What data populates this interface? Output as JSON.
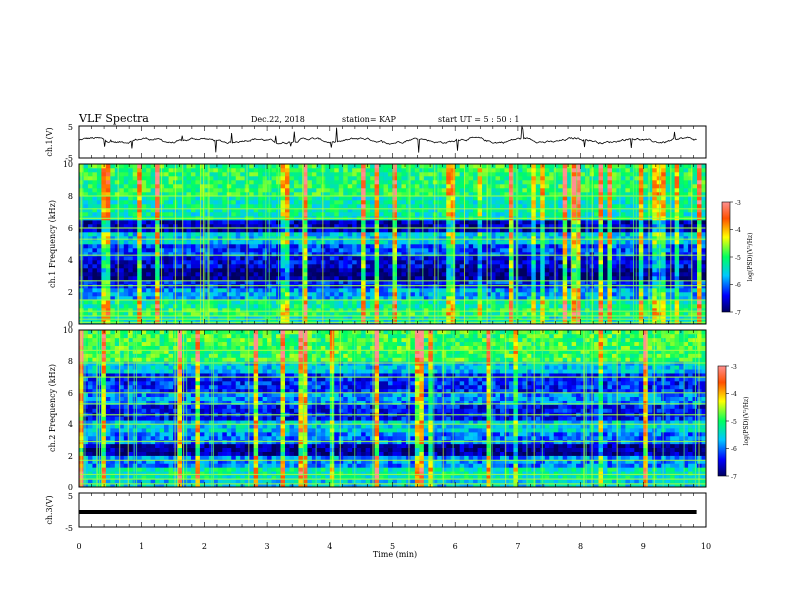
{
  "header": {
    "title": "VLF Spectra",
    "date": "Dec.22, 2018",
    "station": "station= KAP",
    "start": "start  UT =  5 : 50 : 1"
  },
  "chart_data": [
    {
      "type": "line",
      "ylabel": "ch.1(V)",
      "ylim": [
        -5,
        5
      ],
      "yticks": [
        "5",
        "-5"
      ],
      "xlim": [
        0,
        10
      ],
      "description_values": {
        "x_range_min": [
          0,
          9.85
        ],
        "baseline_v": 0.5,
        "amplitude_v": 1.5
      }
    },
    {
      "type": "heatmap",
      "ylabel": "ch.1 Frequency (kHz)",
      "ylim": [
        0,
        10
      ],
      "yticks": [
        "0",
        "2",
        "4",
        "6",
        "8",
        "10"
      ],
      "xlim": [
        0,
        10
      ],
      "colorbar": {
        "label": "log(PSD)(V²/Hz)",
        "ticks": [
          "-3",
          "-4",
          "-5",
          "-6",
          "-7"
        ],
        "range": [
          -7,
          -3
        ]
      },
      "bands": [
        {
          "f": [
            0.0,
            0.4
          ],
          "logpsd": -5.4
        },
        {
          "f": [
            0.4,
            1.0
          ],
          "logpsd": -5.0
        },
        {
          "f": [
            1.0,
            1.6
          ],
          "logpsd": -5.2
        },
        {
          "f": [
            1.6,
            2.2
          ],
          "logpsd": -5.8
        },
        {
          "f": [
            2.2,
            2.7
          ],
          "logpsd": -6.3
        },
        {
          "f": [
            2.7,
            3.5
          ],
          "logpsd": -6.9
        },
        {
          "f": [
            3.5,
            4.3
          ],
          "logpsd": -6.5
        },
        {
          "f": [
            4.3,
            5.1
          ],
          "logpsd": -6.2
        },
        {
          "f": [
            5.1,
            5.8
          ],
          "logpsd": -5.6
        },
        {
          "f": [
            5.8,
            6.6
          ],
          "logpsd": -6.7
        },
        {
          "f": [
            6.6,
            8.0
          ],
          "logpsd": -5.3
        },
        {
          "f": [
            8.0,
            10.0
          ],
          "logpsd": -5.0
        }
      ],
      "harmonic_lines_khz": [
        0.1,
        0.3,
        0.5,
        0.8,
        1.5,
        2.4,
        2.7,
        4.3,
        5.3,
        6.0,
        6.6,
        7.2,
        8.0
      ]
    },
    {
      "type": "heatmap",
      "ylabel": "ch.2 Frequency (kHz)",
      "ylim": [
        0,
        10
      ],
      "yticks": [
        "0",
        "2",
        "4",
        "6",
        "8",
        "10"
      ],
      "xlim": [
        0,
        10
      ],
      "colorbar": {
        "label": "log(PSD)(V²/Hz)",
        "ticks": [
          "-3",
          "-4",
          "-5",
          "-6",
          "-7"
        ],
        "range": [
          -7,
          -3
        ]
      },
      "bands": [
        {
          "f": [
            0.0,
            0.5
          ],
          "logpsd": -5.6
        },
        {
          "f": [
            0.5,
            1.2
          ],
          "logpsd": -5.3
        },
        {
          "f": [
            1.2,
            2.0
          ],
          "logpsd": -5.9
        },
        {
          "f": [
            2.0,
            2.8
          ],
          "logpsd": -6.8
        },
        {
          "f": [
            2.8,
            3.5
          ],
          "logpsd": -6.0
        },
        {
          "f": [
            3.5,
            4.3
          ],
          "logpsd": -5.6
        },
        {
          "f": [
            4.3,
            5.2
          ],
          "logpsd": -6.4
        },
        {
          "f": [
            5.2,
            6.0
          ],
          "logpsd": -5.9
        },
        {
          "f": [
            6.0,
            7.2
          ],
          "logpsd": -6.3
        },
        {
          "f": [
            7.2,
            8.0
          ],
          "logpsd": -5.6
        },
        {
          "f": [
            8.0,
            10.0
          ],
          "logpsd": -4.9
        }
      ],
      "harmonic_lines_khz": [
        0.2,
        0.5,
        0.8,
        1.7,
        2.9,
        4.0,
        4.6,
        5.3,
        6.0,
        7.0,
        7.9,
        8.7
      ]
    },
    {
      "type": "line",
      "ylabel": "ch.3(V)",
      "ylim": [
        -5,
        5
      ],
      "yticks": [
        "5",
        "-5"
      ],
      "xlim": [
        0,
        10
      ],
      "xlabel": "Time (min)",
      "xticks": [
        "0",
        "1",
        "2",
        "3",
        "4",
        "5",
        "6",
        "7",
        "8",
        "9",
        "10"
      ],
      "constant_value_v": 0,
      "x_range_min": [
        0,
        9.85
      ]
    }
  ]
}
